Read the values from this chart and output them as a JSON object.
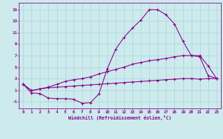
{
  "xlabel": "Windchill (Refroidissement éolien,°C)",
  "xlim": [
    -0.5,
    23.5
  ],
  "ylim": [
    -2.2,
    16.2
  ],
  "yticks": [
    -1,
    1,
    3,
    5,
    7,
    9,
    11,
    13,
    15
  ],
  "xticks": [
    0,
    1,
    2,
    3,
    4,
    5,
    6,
    7,
    8,
    9,
    10,
    11,
    12,
    13,
    14,
    15,
    16,
    17,
    18,
    19,
    20,
    21,
    22,
    23
  ],
  "bg_color": "#cdeaed",
  "grid_color": "#aad4d8",
  "line_color": "#880088",
  "curve1_x": [
    0,
    1,
    2,
    3,
    4,
    5,
    6,
    7,
    8,
    9,
    10,
    11,
    12,
    13,
    14,
    15,
    16,
    17,
    18,
    19,
    20,
    21,
    22,
    23
  ],
  "curve1_y": [
    2,
    0.5,
    0.4,
    -0.4,
    -0.5,
    -0.5,
    -0.6,
    -1.3,
    -1.2,
    0.3,
    4.7,
    8.1,
    10.2,
    11.8,
    13.2,
    15.0,
    15.0,
    14.1,
    12.5,
    9.5,
    7.0,
    7.0,
    5.2,
    3.0
  ],
  "curve2_x": [
    0,
    1,
    2,
    3,
    4,
    5,
    6,
    7,
    8,
    9,
    10,
    11,
    12,
    13,
    14,
    15,
    16,
    17,
    18,
    19,
    20,
    21,
    22,
    23
  ],
  "curve2_y": [
    2,
    0.9,
    1.2,
    1.5,
    2.0,
    2.5,
    2.8,
    3.0,
    3.3,
    3.8,
    4.2,
    4.6,
    5.0,
    5.5,
    5.8,
    6.1,
    6.3,
    6.5,
    6.8,
    7.0,
    7.0,
    6.8,
    3.5,
    3.0
  ],
  "curve3_x": [
    0,
    1,
    2,
    3,
    4,
    5,
    6,
    7,
    8,
    9,
    10,
    11,
    12,
    13,
    14,
    15,
    16,
    17,
    18,
    19,
    20,
    21,
    22,
    23
  ],
  "curve3_y": [
    2,
    0.9,
    1.2,
    1.4,
    1.5,
    1.6,
    1.7,
    1.8,
    1.9,
    2.0,
    2.1,
    2.2,
    2.3,
    2.4,
    2.5,
    2.6,
    2.7,
    2.8,
    2.9,
    3.0,
    3.0,
    2.9,
    3.0,
    3.0
  ]
}
